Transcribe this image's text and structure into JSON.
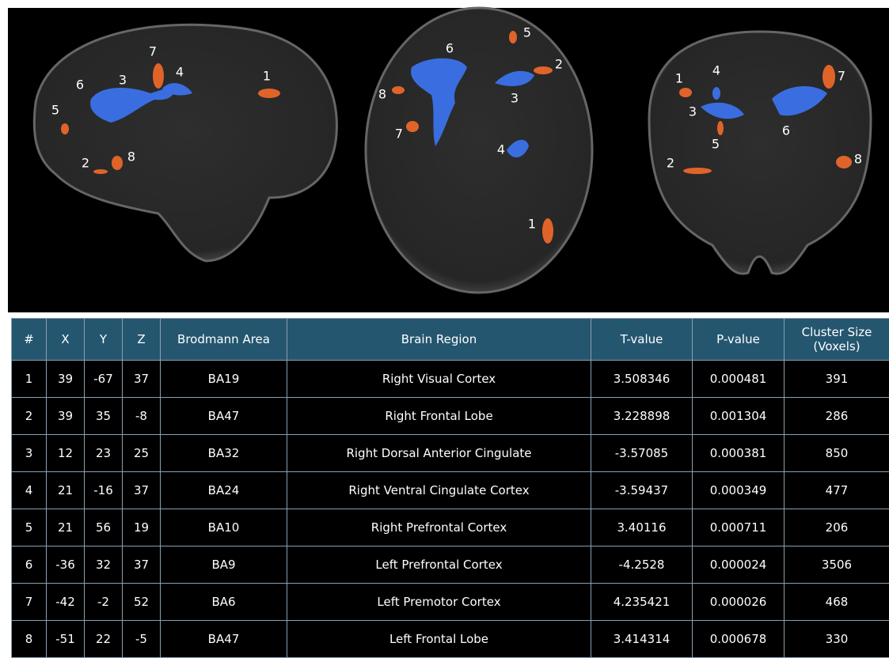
{
  "views": [
    {
      "labels": [
        "1",
        "2",
        "3",
        "4",
        "5",
        "6",
        "7",
        "8"
      ]
    },
    {
      "labels": [
        "1",
        "2",
        "3",
        "4",
        "5",
        "6",
        "7",
        "8"
      ]
    },
    {
      "labels": [
        "1",
        "2",
        "3",
        "4",
        "5",
        "6",
        "7",
        "8"
      ]
    }
  ],
  "table": {
    "header": [
      "#",
      "X",
      "Y",
      "Z",
      "Brodmann Area",
      "Brain Region",
      "T-value",
      "P-value",
      "Cluster Size (Voxels)"
    ],
    "rows": [
      [
        "1",
        "39",
        "-67",
        "37",
        "BA19",
        "Right Visual Cortex",
        "3.508346",
        "0.000481",
        "391"
      ],
      [
        "2",
        "39",
        "35",
        "-8",
        "BA47",
        "Right Frontal Lobe",
        "3.228898",
        "0.001304",
        "286"
      ],
      [
        "3",
        "12",
        "23",
        "25",
        "BA32",
        "Right Dorsal Anterior Cingulate",
        "-3.57085",
        "0.000381",
        "850"
      ],
      [
        "4",
        "21",
        "-16",
        "37",
        "BA24",
        "Right Ventral Cingulate Cortex",
        "-3.59437",
        "0.000349",
        "477"
      ],
      [
        "5",
        "21",
        "56",
        "19",
        "BA10",
        "Right Prefrontal Cortex",
        "3.40116",
        "0.000711",
        "206"
      ],
      [
        "6",
        "-36",
        "32",
        "37",
        "BA9",
        "Left Prefrontal Cortex",
        "-4.2528",
        "0.000024",
        "3506"
      ],
      [
        "7",
        "-42",
        "-2",
        "52",
        "BA6",
        "Left Premotor Cortex",
        "4.235421",
        "0.000026",
        "468"
      ],
      [
        "8",
        "-51",
        "22",
        "-5",
        "BA47",
        "Left Frontal Lobe",
        "3.414314",
        "0.000678",
        "330"
      ]
    ]
  }
}
